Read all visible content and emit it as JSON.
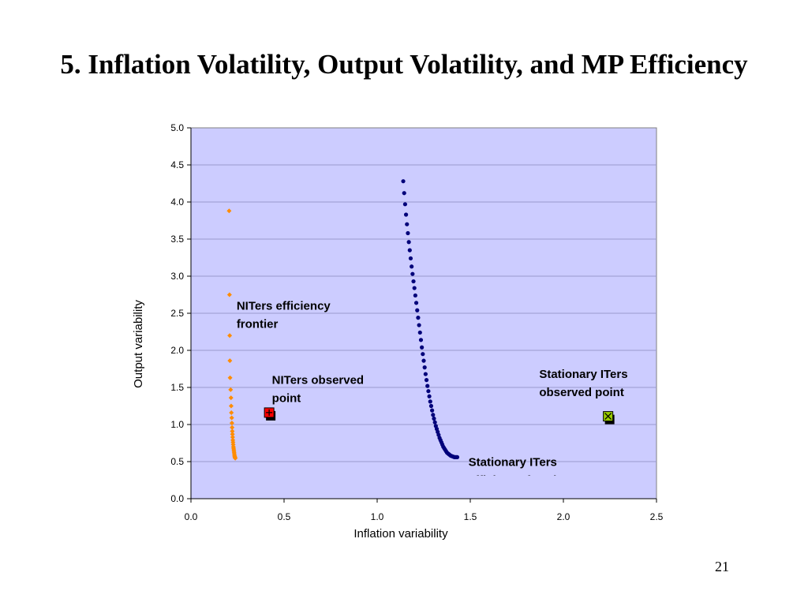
{
  "slide": {
    "title": "5. Inflation Volatility, Output Volatility, and MP Efficiency",
    "page_number": "21"
  },
  "chart_data": {
    "type": "scatter",
    "title": "",
    "xlabel": "Inflation variability",
    "ylabel": "Output variability",
    "xlim": [
      0,
      2.5
    ],
    "ylim": [
      0,
      5
    ],
    "x_ticks": [
      "0.0",
      "0.5",
      "1.0",
      "1.5",
      "2.0",
      "2.5"
    ],
    "y_ticks": [
      "0.0",
      "0.5",
      "1.0",
      "1.5",
      "2.0",
      "2.5",
      "3.0",
      "3.5",
      "4.0",
      "4.5",
      "5.0"
    ],
    "grid": "horizontal major gridlines",
    "colors": {
      "plot_bg": "#ccccff",
      "niters_frontier": "#ff8c00",
      "iters_frontier": "#00007a",
      "niters_point": "#ff0000",
      "iters_point": "#99cc00"
    },
    "series": [
      {
        "name": "NITers efficiency frontier",
        "marker": "diamond",
        "points": [
          [
            0.205,
            3.88
          ],
          [
            0.207,
            2.75
          ],
          [
            0.208,
            2.2
          ],
          [
            0.209,
            1.86
          ],
          [
            0.21,
            1.63
          ],
          [
            0.213,
            1.47
          ],
          [
            0.215,
            1.36
          ],
          [
            0.216,
            1.25
          ],
          [
            0.217,
            1.16
          ],
          [
            0.219,
            1.09
          ],
          [
            0.22,
            1.02
          ],
          [
            0.221,
            0.96
          ],
          [
            0.222,
            0.91
          ],
          [
            0.223,
            0.87
          ],
          [
            0.224,
            0.83
          ],
          [
            0.225,
            0.79
          ],
          [
            0.226,
            0.76
          ],
          [
            0.227,
            0.73
          ],
          [
            0.228,
            0.7
          ],
          [
            0.229,
            0.68
          ],
          [
            0.23,
            0.66
          ],
          [
            0.231,
            0.64
          ],
          [
            0.232,
            0.62
          ],
          [
            0.233,
            0.6
          ],
          [
            0.234,
            0.58
          ],
          [
            0.235,
            0.57
          ],
          [
            0.236,
            0.56
          ],
          [
            0.237,
            0.55
          ],
          [
            0.238,
            0.545
          ]
        ]
      },
      {
        "name": "Stationary ITers efficiency frontier",
        "marker": "circle",
        "points": [
          [
            1.14,
            4.28
          ],
          [
            1.145,
            4.12
          ],
          [
            1.15,
            3.97
          ],
          [
            1.155,
            3.83
          ],
          [
            1.16,
            3.7
          ],
          [
            1.165,
            3.58
          ],
          [
            1.17,
            3.46
          ],
          [
            1.175,
            3.35
          ],
          [
            1.18,
            3.24
          ],
          [
            1.185,
            3.13
          ],
          [
            1.19,
            3.03
          ],
          [
            1.195,
            2.93
          ],
          [
            1.2,
            2.84
          ],
          [
            1.205,
            2.74
          ],
          [
            1.21,
            2.64
          ],
          [
            1.215,
            2.54
          ],
          [
            1.22,
            2.44
          ],
          [
            1.225,
            2.34
          ],
          [
            1.23,
            2.24
          ],
          [
            1.235,
            2.14
          ],
          [
            1.24,
            2.04
          ],
          [
            1.245,
            1.95
          ],
          [
            1.25,
            1.86
          ],
          [
            1.255,
            1.77
          ],
          [
            1.26,
            1.68
          ],
          [
            1.265,
            1.6
          ],
          [
            1.27,
            1.52
          ],
          [
            1.275,
            1.45
          ],
          [
            1.28,
            1.38
          ],
          [
            1.285,
            1.31
          ],
          [
            1.29,
            1.25
          ],
          [
            1.295,
            1.19
          ],
          [
            1.3,
            1.13
          ],
          [
            1.305,
            1.08
          ],
          [
            1.31,
            1.03
          ],
          [
            1.315,
            0.98
          ],
          [
            1.32,
            0.94
          ],
          [
            1.325,
            0.9
          ],
          [
            1.33,
            0.86
          ],
          [
            1.335,
            0.82
          ],
          [
            1.34,
            0.79
          ],
          [
            1.345,
            0.76
          ],
          [
            1.35,
            0.73
          ],
          [
            1.355,
            0.7
          ],
          [
            1.36,
            0.68
          ],
          [
            1.365,
            0.66
          ],
          [
            1.37,
            0.64
          ],
          [
            1.375,
            0.62
          ],
          [
            1.38,
            0.61
          ],
          [
            1.385,
            0.6
          ],
          [
            1.39,
            0.59
          ],
          [
            1.395,
            0.58
          ],
          [
            1.4,
            0.575
          ],
          [
            1.405,
            0.57
          ],
          [
            1.41,
            0.565
          ],
          [
            1.415,
            0.56
          ],
          [
            1.42,
            0.56
          ],
          [
            1.425,
            0.56
          ],
          [
            1.43,
            0.56
          ]
        ]
      },
      {
        "name": "NITers observed point",
        "marker": "plus-square",
        "points": [
          [
            0.42,
            1.15
          ]
        ]
      },
      {
        "name": "Stationary ITers observed point",
        "marker": "x-square",
        "points": [
          [
            2.24,
            1.1
          ]
        ]
      }
    ],
    "annotations": [
      {
        "lines": [
          "NITers efficiency",
          "frontier"
        ],
        "anchor": [
          0.245,
          2.55
        ]
      },
      {
        "lines": [
          "NITers observed",
          "point"
        ],
        "anchor": [
          0.435,
          1.55
        ]
      },
      {
        "lines": [
          "Stationary ITers",
          "observed point"
        ],
        "anchor": [
          1.87,
          1.63
        ]
      },
      {
        "lines": [
          "Stationary ITers",
          "efficiency frontier"
        ],
        "anchor": [
          1.49,
          0.44
        ],
        "clipped": true
      }
    ]
  }
}
